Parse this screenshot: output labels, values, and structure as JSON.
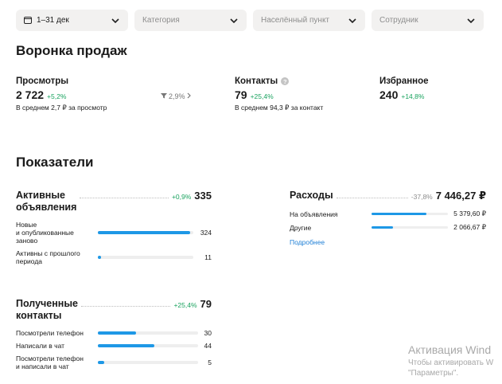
{
  "filters": {
    "date": "1–31 дек",
    "category": "Категория",
    "city": "Населённый пункт",
    "employee": "Сотрудник"
  },
  "funnel": {
    "title": "Воронка продаж",
    "views": {
      "label": "Просмотры",
      "value": "2 722",
      "change": "+5,2%",
      "sub": "В среднем 2,7 ₽ за просмотр"
    },
    "conversion": "2,9%",
    "contacts": {
      "label": "Контакты",
      "value": "79",
      "change": "+25,4%",
      "sub": "В среднем 94,3 ₽ за контакт"
    },
    "favorites": {
      "label": "Избранное",
      "value": "240",
      "change": "+14,8%"
    }
  },
  "metrics": {
    "title": "Показатели",
    "active_ads": {
      "title_line1": "Активные",
      "title_line2": "объявления",
      "change": "+0,9%",
      "value": "335",
      "rows": [
        {
          "label_line1": "Новые",
          "label_line2": "и опубликованные",
          "label_line3": "заново",
          "value": "324",
          "fraction": 0.97
        },
        {
          "label_line1": "Активны с прошлого",
          "label_line2": "периода",
          "value": "11",
          "fraction": 0.03
        }
      ]
    },
    "contacts_received": {
      "title_line1": "Полученные",
      "title_line2": "контакты",
      "change": "+25,4%",
      "value": "79",
      "rows": [
        {
          "label_line1": "Посмотрели телефон",
          "value": "30",
          "fraction": 0.38
        },
        {
          "label_line1": "Написали в чат",
          "value": "44",
          "fraction": 0.56
        },
        {
          "label_line1": "Посмотрели телефон",
          "label_line2": "и написали в чат",
          "value": "5",
          "fraction": 0.06
        }
      ]
    },
    "expenses": {
      "title": "Расходы",
      "change": "-37,8%",
      "value": "7 446,27 ₽",
      "rows": [
        {
          "label": "На объявления",
          "value": "5 379,60 ₽",
          "fraction": 0.72
        },
        {
          "label": "Другие",
          "value": "2 066,67 ₽",
          "fraction": 0.28
        }
      ],
      "more": "Подробнее"
    }
  },
  "watermark": {
    "line1": "Активация Wind",
    "line2": "Чтобы активировать W",
    "line3": "\"Параметры\"."
  },
  "colors": {
    "accent": "#1e98e6",
    "positive": "#1aa35f",
    "link": "#1e7fd6"
  }
}
